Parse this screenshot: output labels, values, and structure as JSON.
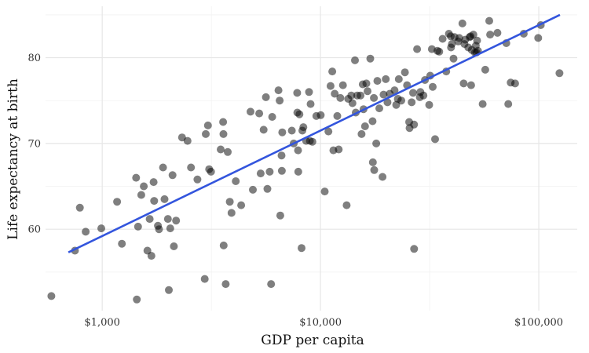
{
  "chart_data": {
    "type": "scatter",
    "xlabel": "GDP per capita",
    "ylabel": "Life expectancy at birth",
    "x_scale": "log10",
    "xlim": [
      550,
      150000
    ],
    "ylim": [
      50.5,
      86
    ],
    "x_ticks": [
      1000,
      10000,
      100000
    ],
    "x_tick_labels": [
      "$1,000",
      "$10,000",
      "$100,000"
    ],
    "y_ticks": [
      60,
      70,
      80
    ],
    "y_tick_labels": [
      "60",
      "70",
      "80"
    ],
    "grid": true,
    "point_color": "#000000",
    "trend_color": "#3355dd",
    "trend_line": {
      "x": [
        700,
        125000
      ],
      "y": [
        57.3,
        85.0
      ]
    },
    "points": [
      [
        585,
        52.2
      ],
      [
        750,
        57.5
      ],
      [
        790,
        62.5
      ],
      [
        840,
        59.7
      ],
      [
        990,
        60.1
      ],
      [
        1170,
        63.2
      ],
      [
        1230,
        58.3
      ],
      [
        1430,
        66.0
      ],
      [
        1440,
        51.8
      ],
      [
        1460,
        60.3
      ],
      [
        1510,
        64.0
      ],
      [
        1550,
        65.0
      ],
      [
        1610,
        57.5
      ],
      [
        1650,
        61.2
      ],
      [
        1680,
        56.9
      ],
      [
        1720,
        65.5
      ],
      [
        1730,
        63.3
      ],
      [
        1800,
        60.4
      ],
      [
        1820,
        60.0
      ],
      [
        1900,
        67.2
      ],
      [
        1930,
        63.5
      ],
      [
        2000,
        61.2
      ],
      [
        2020,
        52.9
      ],
      [
        2050,
        60.1
      ],
      [
        2100,
        66.3
      ],
      [
        2130,
        58.0
      ],
      [
        2180,
        61.0
      ],
      [
        2320,
        70.7
      ],
      [
        2460,
        70.3
      ],
      [
        2550,
        67.2
      ],
      [
        2730,
        65.8
      ],
      [
        2950,
        54.2
      ],
      [
        2980,
        71.1
      ],
      [
        3050,
        72.1
      ],
      [
        3090,
        67.0
      ],
      [
        3150,
        66.7
      ],
      [
        3490,
        69.3
      ],
      [
        3580,
        72.5
      ],
      [
        3590,
        71.1
      ],
      [
        3600,
        58.1
      ],
      [
        3680,
        53.6
      ],
      [
        3760,
        69.0
      ],
      [
        3840,
        63.2
      ],
      [
        3910,
        61.9
      ],
      [
        4090,
        65.6
      ],
      [
        4330,
        62.8
      ],
      [
        4780,
        73.7
      ],
      [
        4900,
        64.6
      ],
      [
        5240,
        73.5
      ],
      [
        5320,
        66.5
      ],
      [
        5490,
        71.6
      ],
      [
        5620,
        75.4
      ],
      [
        5710,
        64.7
      ],
      [
        5850,
        66.7
      ],
      [
        5940,
        53.6
      ],
      [
        6010,
        73.1
      ],
      [
        6420,
        76.2
      ],
      [
        6500,
        75.0
      ],
      [
        6540,
        61.6
      ],
      [
        6630,
        68.6
      ],
      [
        6650,
        66.8
      ],
      [
        6680,
        71.3
      ],
      [
        7390,
        71.5
      ],
      [
        7540,
        70.0
      ],
      [
        7820,
        75.9
      ],
      [
        7830,
        73.6
      ],
      [
        7890,
        69.2
      ],
      [
        7910,
        66.7
      ],
      [
        8010,
        73.4
      ],
      [
        8190,
        57.8
      ],
      [
        8260,
        71.5
      ],
      [
        8350,
        71.9
      ],
      [
        8590,
        70.3
      ],
      [
        8860,
        76.0
      ],
      [
        8940,
        70.3
      ],
      [
        9010,
        74.6
      ],
      [
        9180,
        70.2
      ],
      [
        9570,
        73.2
      ],
      [
        10020,
        73.3
      ],
      [
        10460,
        64.4
      ],
      [
        10870,
        71.4
      ],
      [
        11120,
        76.7
      ],
      [
        11320,
        78.4
      ],
      [
        11450,
        69.2
      ],
      [
        11620,
        75.8
      ],
      [
        11940,
        73.2
      ],
      [
        12120,
        69.3
      ],
      [
        12330,
        75.3
      ],
      [
        12670,
        76.8
      ],
      [
        13180,
        62.8
      ],
      [
        13400,
        75.2
      ],
      [
        13830,
        75.6
      ],
      [
        14010,
        74.7
      ],
      [
        14390,
        79.7
      ],
      [
        14510,
        73.6
      ],
      [
        14740,
        75.6
      ],
      [
        15260,
        75.6
      ],
      [
        15420,
        71.1
      ],
      [
        15620,
        76.9
      ],
      [
        15740,
        74.0
      ],
      [
        15990,
        72.0
      ],
      [
        16220,
        77.0
      ],
      [
        16430,
        76.1
      ],
      [
        16900,
        79.9
      ],
      [
        17320,
        72.6
      ],
      [
        17380,
        67.8
      ],
      [
        17560,
        75.3
      ],
      [
        17620,
        66.9
      ],
      [
        18010,
        70.0
      ],
      [
        18210,
        77.3
      ],
      [
        18590,
        74.1
      ],
      [
        19240,
        66.1
      ],
      [
        19450,
        75.7
      ],
      [
        19900,
        77.5
      ],
      [
        20270,
        74.8
      ],
      [
        20760,
        75.8
      ],
      [
        21840,
        76.2
      ],
      [
        22220,
        74.5
      ],
      [
        22610,
        75.2
      ],
      [
        22840,
        77.5
      ],
      [
        23460,
        75.0
      ],
      [
        24370,
        78.3
      ],
      [
        24910,
        76.8
      ],
      [
        25470,
        72.5
      ],
      [
        25580,
        71.8
      ],
      [
        26160,
        74.8
      ],
      [
        26560,
        75.9
      ],
      [
        26840,
        57.7
      ],
      [
        26830,
        72.2
      ],
      [
        27710,
        81.0
      ],
      [
        28510,
        75.4
      ],
      [
        28680,
        76.0
      ],
      [
        29620,
        75.6
      ],
      [
        30100,
        77.4
      ],
      [
        31480,
        74.5
      ],
      [
        31810,
        77.9
      ],
      [
        32380,
        81.0
      ],
      [
        32670,
        76.6
      ],
      [
        33480,
        70.5
      ],
      [
        34330,
        80.8
      ],
      [
        34980,
        80.7
      ],
      [
        36260,
        82.2
      ],
      [
        37680,
        78.4
      ],
      [
        38750,
        82.8
      ],
      [
        39530,
        82.5
      ],
      [
        39620,
        81.2
      ],
      [
        39970,
        81.6
      ],
      [
        40680,
        79.9
      ],
      [
        41130,
        82.4
      ],
      [
        42750,
        81.9
      ],
      [
        43230,
        82.3
      ],
      [
        44690,
        84.0
      ],
      [
        45280,
        77.0
      ],
      [
        45640,
        81.6
      ],
      [
        46020,
        82.1
      ],
      [
        47540,
        81.2
      ],
      [
        48210,
        82.4
      ],
      [
        48680,
        82.5
      ],
      [
        49000,
        76.8
      ],
      [
        49310,
        80.9
      ],
      [
        50170,
        82.7
      ],
      [
        50980,
        80.6
      ],
      [
        51470,
        81.4
      ],
      [
        51810,
        80.6
      ],
      [
        52150,
        82.0
      ],
      [
        52620,
        80.8
      ],
      [
        55330,
        74.6
      ],
      [
        56850,
        78.6
      ],
      [
        59330,
        84.3
      ],
      [
        59850,
        82.7
      ],
      [
        64670,
        82.9
      ],
      [
        71000,
        81.7
      ],
      [
        72470,
        74.6
      ],
      [
        74370,
        77.1
      ],
      [
        77900,
        77.0
      ],
      [
        85340,
        82.8
      ],
      [
        99350,
        82.3
      ],
      [
        102160,
        83.8
      ],
      [
        124400,
        78.2
      ]
    ]
  }
}
